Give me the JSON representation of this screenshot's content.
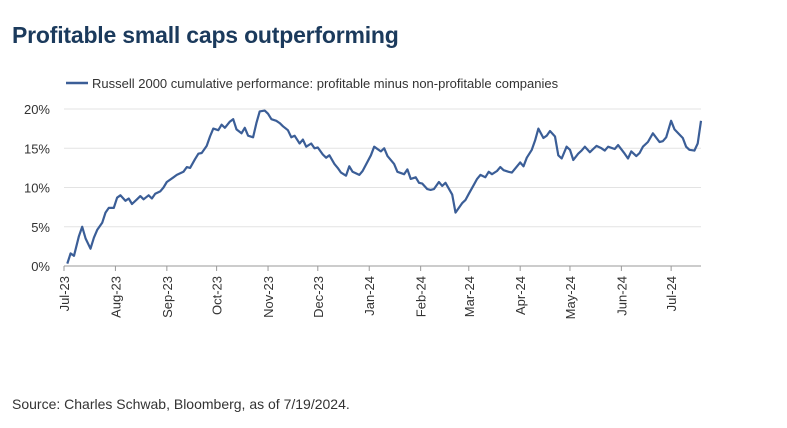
{
  "title": "Profitable small caps outperforming",
  "source": "Source: Charles Schwab, Bloomberg, as of 7/19/2024.",
  "colors": {
    "title": "#1b3a5c",
    "series": "#3b5e97",
    "grid": "#e3e3e3",
    "axis": "#999999"
  },
  "chart_data": {
    "type": "line",
    "title": "Profitable small caps outperforming",
    "legend": [
      "Russell 2000 cumulative performance: profitable minus non-profitable companies"
    ],
    "legend_position": "top",
    "grid": "horizontal",
    "ylim": [
      0,
      20
    ],
    "yticks": [
      0,
      5,
      10,
      15,
      20
    ],
    "ytick_labels": [
      "0%",
      "5%",
      "10%",
      "15%",
      "20%"
    ],
    "xlim": [
      "2023-07-01",
      "2024-07-19"
    ],
    "xtick_dates": [
      "2023-07-01",
      "2023-08-01",
      "2023-09-01",
      "2023-10-01",
      "2023-11-01",
      "2023-12-01",
      "2024-01-01",
      "2024-02-01",
      "2024-03-01",
      "2024-04-01",
      "2024-05-01",
      "2024-06-01",
      "2024-07-01"
    ],
    "xtick_labels": [
      "Jul-23",
      "Aug-23",
      "Sep-23",
      "Oct-23",
      "Nov-23",
      "Dec-23",
      "Jan-24",
      "Feb-24",
      "Mar-24",
      "Apr-24",
      "May-24",
      "Jun-24",
      "Jul-24"
    ],
    "series": [
      {
        "name": "Russell 2000 cumulative performance: profitable minus non-profitable companies",
        "x": [
          "2023-07-03",
          "2023-07-05",
          "2023-07-07",
          "2023-07-10",
          "2023-07-12",
          "2023-07-14",
          "2023-07-17",
          "2023-07-19",
          "2023-07-21",
          "2023-07-24",
          "2023-07-26",
          "2023-07-28",
          "2023-07-31",
          "2023-08-02",
          "2023-08-04",
          "2023-08-07",
          "2023-08-09",
          "2023-08-11",
          "2023-08-14",
          "2023-08-16",
          "2023-08-18",
          "2023-08-21",
          "2023-08-23",
          "2023-08-25",
          "2023-08-28",
          "2023-08-30",
          "2023-09-01",
          "2023-09-05",
          "2023-09-07",
          "2023-09-11",
          "2023-09-13",
          "2023-09-15",
          "2023-09-18",
          "2023-09-20",
          "2023-09-22",
          "2023-09-25",
          "2023-09-27",
          "2023-09-29",
          "2023-10-02",
          "2023-10-04",
          "2023-10-06",
          "2023-10-09",
          "2023-10-11",
          "2023-10-13",
          "2023-10-16",
          "2023-10-18",
          "2023-10-20",
          "2023-10-23",
          "2023-10-25",
          "2023-10-27",
          "2023-10-30",
          "2023-11-01",
          "2023-11-03",
          "2023-11-06",
          "2023-11-08",
          "2023-11-10",
          "2023-11-13",
          "2023-11-15",
          "2023-11-17",
          "2023-11-20",
          "2023-11-22",
          "2023-11-24",
          "2023-11-27",
          "2023-11-29",
          "2023-12-01",
          "2023-12-04",
          "2023-12-06",
          "2023-12-08",
          "2023-12-11",
          "2023-12-13",
          "2023-12-15",
          "2023-12-18",
          "2023-12-20",
          "2023-12-22",
          "2023-12-26",
          "2023-12-28",
          "2024-01-02",
          "2024-01-04",
          "2024-01-08",
          "2024-01-10",
          "2024-01-12",
          "2024-01-16",
          "2024-01-18",
          "2024-01-22",
          "2024-01-24",
          "2024-01-26",
          "2024-01-29",
          "2024-01-31",
          "2024-02-02",
          "2024-02-05",
          "2024-02-07",
          "2024-02-09",
          "2024-02-12",
          "2024-02-14",
          "2024-02-16",
          "2024-02-20",
          "2024-02-22",
          "2024-02-26",
          "2024-02-28",
          "2024-03-01",
          "2024-03-04",
          "2024-03-06",
          "2024-03-08",
          "2024-03-11",
          "2024-03-13",
          "2024-03-15",
          "2024-03-18",
          "2024-03-20",
          "2024-03-22",
          "2024-03-25",
          "2024-03-27",
          "2024-04-01",
          "2024-04-03",
          "2024-04-05",
          "2024-04-08",
          "2024-04-10",
          "2024-04-12",
          "2024-04-15",
          "2024-04-17",
          "2024-04-19",
          "2024-04-22",
          "2024-04-24",
          "2024-04-26",
          "2024-04-29",
          "2024-05-01",
          "2024-05-03",
          "2024-05-06",
          "2024-05-08",
          "2024-05-10",
          "2024-05-13",
          "2024-05-15",
          "2024-05-17",
          "2024-05-20",
          "2024-05-22",
          "2024-05-24",
          "2024-05-28",
          "2024-05-30",
          "2024-06-03",
          "2024-06-05",
          "2024-06-07",
          "2024-06-10",
          "2024-06-12",
          "2024-06-14",
          "2024-06-17",
          "2024-06-20",
          "2024-06-24",
          "2024-06-26",
          "2024-06-28",
          "2024-07-01",
          "2024-07-03",
          "2024-07-08",
          "2024-07-10",
          "2024-07-12",
          "2024-07-15",
          "2024-07-17",
          "2024-07-19"
        ],
        "values": [
          0.3,
          1.6,
          1.3,
          3.8,
          5.0,
          3.5,
          2.2,
          3.6,
          4.6,
          5.5,
          6.8,
          7.4,
          7.4,
          8.7,
          9.0,
          8.3,
          8.6,
          7.9,
          8.5,
          8.9,
          8.5,
          9.0,
          8.6,
          9.2,
          9.5,
          10.0,
          10.7,
          11.3,
          11.6,
          12.0,
          12.6,
          12.5,
          13.6,
          14.3,
          14.4,
          15.3,
          16.5,
          17.5,
          17.3,
          18.0,
          17.6,
          18.4,
          18.7,
          17.4,
          16.9,
          17.6,
          16.6,
          16.4,
          18.2,
          19.7,
          19.8,
          19.4,
          18.7,
          18.5,
          18.2,
          17.8,
          17.3,
          16.4,
          16.6,
          15.6,
          16.1,
          15.2,
          15.6,
          15.0,
          15.1,
          14.2,
          13.8,
          14.1,
          13.0,
          12.5,
          11.9,
          11.5,
          12.7,
          12.0,
          11.6,
          12.1,
          14.1,
          15.2,
          14.6,
          15.0,
          14.0,
          13.0,
          12.0,
          11.7,
          12.3,
          11.1,
          11.3,
          10.6,
          10.5,
          9.8,
          9.7,
          9.8,
          10.7,
          10.2,
          10.6,
          9.1,
          6.8,
          8.0,
          8.4,
          9.2,
          10.3,
          11.1,
          11.6,
          11.3,
          12.0,
          11.7,
          12.1,
          12.6,
          12.2,
          12.0,
          11.9,
          13.2,
          12.7,
          13.8,
          14.8,
          16.0,
          17.5,
          16.3,
          16.6,
          17.2,
          16.5,
          14.1,
          13.7,
          15.2,
          14.8,
          13.5,
          14.3,
          14.7,
          15.2,
          14.5,
          14.9,
          15.3,
          15.0,
          14.7,
          15.2,
          14.9,
          15.4,
          14.3,
          13.7,
          14.6,
          14.0,
          14.4,
          15.2,
          15.8,
          16.9,
          15.8,
          15.9,
          16.4,
          18.5,
          17.4,
          16.3,
          15.2,
          14.8,
          14.7,
          15.6,
          18.5
        ]
      }
    ]
  }
}
